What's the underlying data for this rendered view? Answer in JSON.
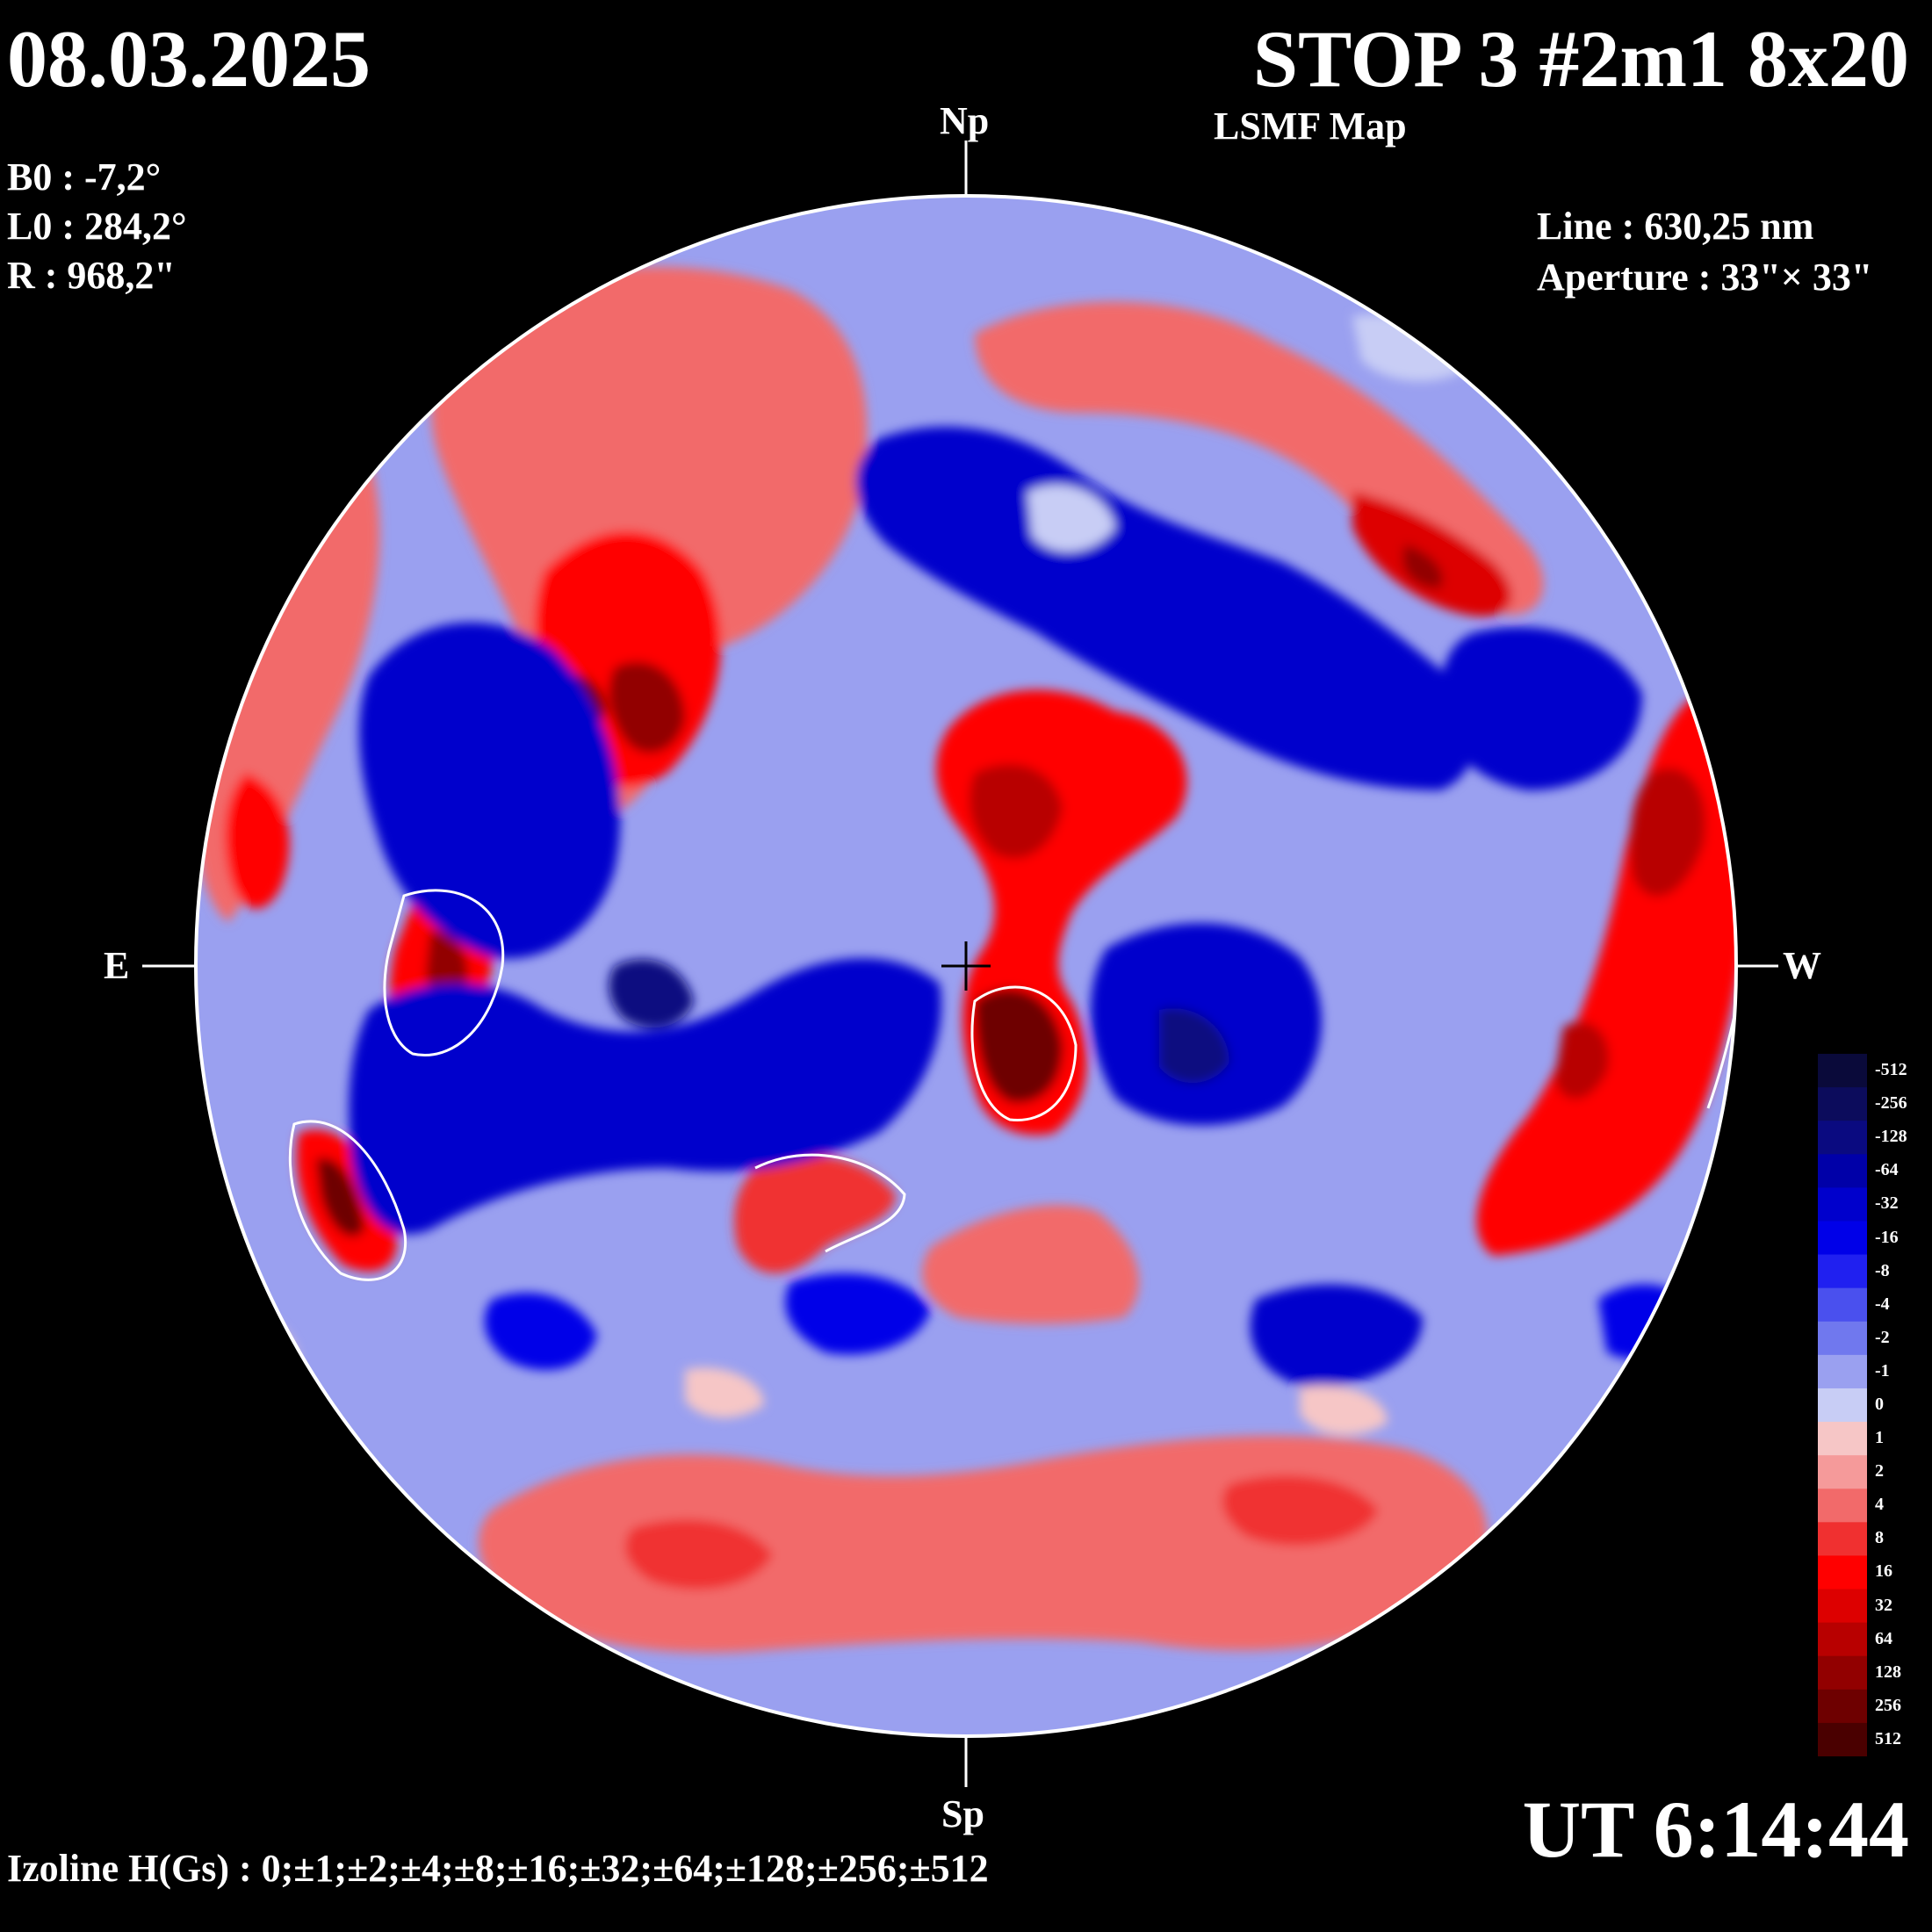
{
  "header": {
    "date": "08.03.2025",
    "title": "STOP 3 #2m1 8x20",
    "subtitle": "LSMF  Map"
  },
  "params": {
    "b0": "B0 : -7,2°",
    "l0": "L0 : 284,2°",
    "r": "R  : 968,2\""
  },
  "instrument": {
    "line": "Line :  630,25 nm",
    "aperture": "Aperture : 33\"× 33\""
  },
  "poles": {
    "north": "Np",
    "south": "Sp",
    "east": "E",
    "west": "W"
  },
  "time": "UT 6:14:44",
  "izoline": "Izoline H(Gs) : 0;±1;±2;±4;±8;±16;±32;±64;±128;±256;±512",
  "legend": {
    "labels": [
      "-512",
      "-256",
      "-128",
      "-64",
      "-32",
      "-16",
      "-8",
      "-4",
      "-2",
      "-1",
      "0",
      "1",
      "2",
      "4",
      "8",
      "16",
      "32",
      "64",
      "128",
      "256",
      "512"
    ],
    "colors": [
      "#0a0a3a",
      "#0c0c5c",
      "#0a0a80",
      "#0000a8",
      "#0000cc",
      "#0000e8",
      "#2020f0",
      "#4a50ee",
      "#7078ee",
      "#9aa0f0",
      "#c8cdf5",
      "#f6c6c6",
      "#f59a9a",
      "#f26a6a",
      "#f03030",
      "#ff0000",
      "#dd0000",
      "#b80000",
      "#920000",
      "#6e0000",
      "#4a0000"
    ]
  }
}
